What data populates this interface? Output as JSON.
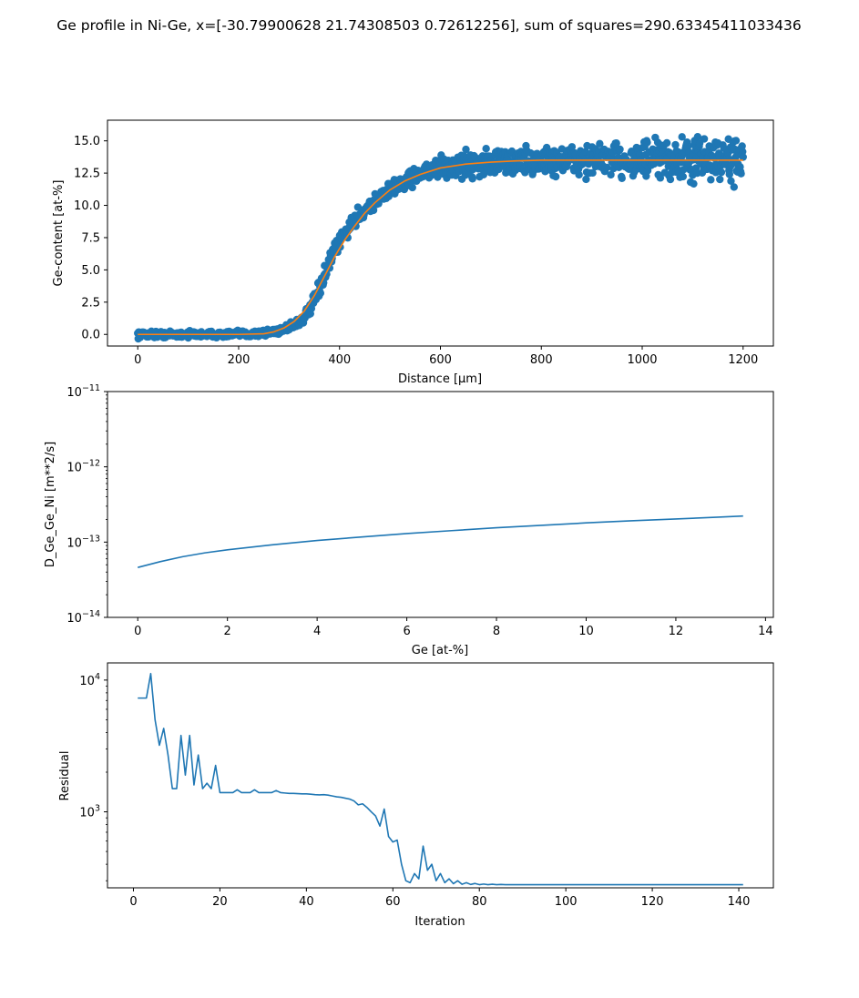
{
  "figure": {
    "suptitle": "Ge profile in Ni-Ge, x=[-30.79900628  21.74308503   0.72612256], sum of squares=290.63345411033436"
  },
  "colors": {
    "series_blue": "#1f77b4",
    "series_orange": "#ff7f0e",
    "axes": "#000000",
    "background": "#ffffff"
  },
  "chart_data": [
    {
      "type": "scatter",
      "title": "",
      "xlabel": "Distance [µm]",
      "ylabel": "Ge-content [at-%]",
      "xlim": [
        -60,
        1260
      ],
      "ylim": [
        -0.9,
        16.6
      ],
      "xticks": [
        0,
        200,
        400,
        600,
        800,
        1000,
        1200
      ],
      "xtick_labels": [
        "0",
        "200",
        "400",
        "600",
        "800",
        "1000",
        "1200"
      ],
      "yticks": [
        0,
        2.5,
        5,
        7.5,
        10,
        12.5,
        15
      ],
      "ytick_labels": [
        "0.0",
        "2.5",
        "5.0",
        "7.5",
        "10.0",
        "12.5",
        "15.0"
      ],
      "grid": false,
      "series": [
        {
          "kind": "scatter",
          "color": "#1f77b4",
          "x": [
            0,
            50,
            100,
            150,
            200,
            250,
            280,
            300,
            320,
            340,
            360,
            380,
            400,
            420,
            440,
            460,
            480,
            500,
            520,
            540,
            560,
            580,
            600,
            620,
            650,
            700,
            750,
            800,
            850,
            900,
            950,
            1000,
            1050,
            1100,
            1150,
            1200
          ],
          "y": [
            0,
            0,
            0,
            0,
            0,
            0.1,
            0.3,
            0.6,
            1.0,
            1.8,
            3.5,
            5.6,
            7.2,
            8.4,
            9.3,
            10.0,
            10.6,
            11.2,
            11.7,
            12.1,
            12.4,
            12.7,
            12.9,
            13.0,
            13.2,
            13.3,
            13.4,
            13.4,
            13.5,
            13.5,
            13.5,
            13.5,
            13.5,
            13.5,
            13.5,
            13.5
          ],
          "spread": [
            0.15,
            0.15,
            0.15,
            0.15,
            0.15,
            0.15,
            0.2,
            0.2,
            0.25,
            0.3,
            0.35,
            0.4,
            0.4,
            0.4,
            0.35,
            0.35,
            0.35,
            0.35,
            0.35,
            0.4,
            0.4,
            0.45,
            0.5,
            0.55,
            0.6,
            0.6,
            0.65,
            0.7,
            0.75,
            0.8,
            0.85,
            0.9,
            0.95,
            1.0,
            1.0,
            1.0
          ]
        },
        {
          "kind": "line",
          "color": "#ff7f0e",
          "x": [
            0,
            100,
            200,
            250,
            270,
            290,
            310,
            330,
            350,
            370,
            390,
            410,
            430,
            450,
            470,
            500,
            530,
            560,
            600,
            650,
            700,
            750,
            800,
            900,
            1000,
            1100,
            1200
          ],
          "y": [
            0,
            0,
            0,
            0.05,
            0.2,
            0.5,
            1.0,
            1.8,
            3.0,
            4.5,
            6.0,
            7.3,
            8.4,
            9.4,
            10.2,
            11.2,
            11.9,
            12.4,
            12.9,
            13.2,
            13.35,
            13.45,
            13.5,
            13.5,
            13.5,
            13.5,
            13.5
          ]
        }
      ]
    },
    {
      "type": "line",
      "title": "",
      "xlabel": "Ge [at-%]",
      "ylabel": "D_Ge_Ge_Ni [m**2/s]",
      "yscale": "log",
      "xlim": [
        -0.675,
        14.175
      ],
      "ylim": [
        1e-14,
        1e-11
      ],
      "xticks": [
        0,
        2,
        4,
        6,
        8,
        10,
        12,
        14
      ],
      "xtick_labels": [
        "0",
        "2",
        "4",
        "6",
        "8",
        "10",
        "12",
        "14"
      ],
      "yticks": [
        1e-14,
        1e-13,
        1e-12,
        1e-11
      ],
      "ytick_base": "10",
      "ytick_exponents": [
        "−14",
        "−13",
        "−12",
        "−11"
      ],
      "grid": false,
      "series": [
        {
          "color": "#1f77b4",
          "x": [
            0,
            0.5,
            1,
            1.5,
            2,
            3,
            4,
            5,
            6,
            7,
            8,
            9,
            10,
            11,
            12,
            13,
            13.5
          ],
          "y": [
            4.6e-14,
            5.5e-14,
            6.4e-14,
            7.2e-14,
            7.9e-14,
            9.2e-14,
            1.05e-13,
            1.17e-13,
            1.3e-13,
            1.42e-13,
            1.55e-13,
            1.67e-13,
            1.8e-13,
            1.92e-13,
            2.03e-13,
            2.15e-13,
            2.22e-13
          ]
        }
      ]
    },
    {
      "type": "line",
      "title": "",
      "xlabel": "Iteration",
      "ylabel": "Residual",
      "yscale": "log",
      "xlim": [
        -6,
        148
      ],
      "ylim": [
        265,
        13500
      ],
      "xticks": [
        0,
        20,
        40,
        60,
        80,
        100,
        120,
        140
      ],
      "xtick_labels": [
        "0",
        "20",
        "40",
        "60",
        "80",
        "100",
        "120",
        "140"
      ],
      "yticks": [
        1000,
        10000
      ],
      "ytick_base": "10",
      "ytick_exponents": [
        "3",
        "4"
      ],
      "grid": false,
      "series": [
        {
          "color": "#1f77b4",
          "x": [
            1,
            2,
            3,
            4,
            5,
            6,
            7,
            8,
            9,
            10,
            11,
            12,
            13,
            14,
            15,
            16,
            17,
            18,
            19,
            20,
            21,
            22,
            23,
            24,
            25,
            26,
            27,
            28,
            29,
            30,
            31,
            32,
            33,
            34,
            35,
            36,
            37,
            38,
            39,
            40,
            41,
            42,
            43,
            44,
            45,
            46,
            47,
            48,
            49,
            50,
            51,
            52,
            53,
            54,
            55,
            56,
            57,
            58,
            59,
            60,
            61,
            62,
            63,
            64,
            65,
            66,
            67,
            68,
            69,
            70,
            71,
            72,
            73,
            74,
            75,
            76,
            77,
            78,
            79,
            80,
            81,
            82,
            83,
            84,
            85,
            86,
            88,
            90,
            95,
            100,
            110,
            120,
            130,
            141
          ],
          "y": [
            7300,
            7300,
            7300,
            11200,
            5000,
            3200,
            4300,
            2700,
            1500,
            1500,
            3800,
            1900,
            3800,
            1600,
            2700,
            1500,
            1650,
            1500,
            2250,
            1400,
            1400,
            1400,
            1400,
            1470,
            1400,
            1400,
            1400,
            1470,
            1400,
            1400,
            1400,
            1400,
            1450,
            1400,
            1390,
            1380,
            1380,
            1375,
            1370,
            1370,
            1360,
            1350,
            1345,
            1350,
            1340,
            1320,
            1300,
            1290,
            1270,
            1250,
            1210,
            1130,
            1150,
            1080,
            1000,
            930,
            780,
            1050,
            650,
            590,
            610,
            400,
            300,
            290,
            340,
            310,
            550,
            360,
            400,
            300,
            340,
            290,
            310,
            285,
            300,
            282,
            290,
            281,
            286,
            280,
            283,
            280,
            282,
            280,
            281,
            280,
            280,
            280,
            280,
            280,
            280,
            280,
            280,
            280
          ]
        }
      ]
    }
  ]
}
